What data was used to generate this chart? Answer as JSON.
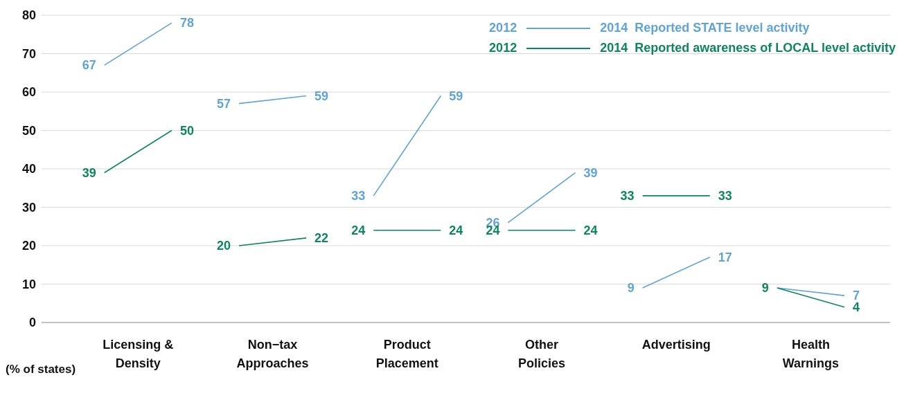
{
  "chart_data": {
    "type": "line",
    "ylabel": "(% of states)",
    "categories": [
      null,
      null,
      "Licensing & Density",
      null,
      null,
      null,
      "Non−tax Approaches",
      null,
      null,
      null,
      "Product Placement",
      null,
      null,
      null,
      "Other Policies",
      null,
      null,
      null,
      "Advertising",
      null,
      null,
      null,
      "Health Warnings",
      null,
      null
    ],
    "ylim": [
      0,
      80
    ],
    "yticks": [
      0,
      10,
      20,
      30,
      40,
      50,
      60,
      70,
      80
    ],
    "grid": "y",
    "legend": "top right",
    "annotations": [
      "2012",
      "2014"
    ],
    "series": [
      {
        "name": "Reported STATE level activity",
        "color": "#5ea4d8",
        "values": [
          null,
          67,
          null,
          78,
          null,
          57,
          null,
          59,
          null,
          33,
          null,
          59,
          null,
          26,
          null,
          39,
          null,
          9,
          null,
          17,
          null,
          9,
          null,
          7,
          null
        ],
        "value_labels": [
          null,
          "67",
          null,
          "78",
          null,
          "57",
          null,
          "59",
          null,
          "33",
          null,
          "59",
          null,
          "26",
          null,
          "39",
          null,
          "9",
          null,
          "17",
          null,
          null,
          null,
          "7",
          null
        ]
      },
      {
        "name": "Reported awareness of LOCAL level activity",
        "color": "#0a875c",
        "values": [
          null,
          39,
          null,
          50,
          null,
          20,
          null,
          22,
          null,
          24,
          null,
          24,
          null,
          24,
          null,
          24,
          null,
          33,
          null,
          33,
          null,
          9,
          null,
          4,
          null
        ],
        "value_labels": [
          null,
          "39",
          null,
          "50",
          null,
          "20",
          null,
          "22",
          null,
          "24",
          null,
          "24",
          null,
          "24",
          null,
          "24",
          null,
          "33",
          null,
          "33",
          null,
          "9",
          null,
          "4",
          null
        ]
      }
    ]
  }
}
